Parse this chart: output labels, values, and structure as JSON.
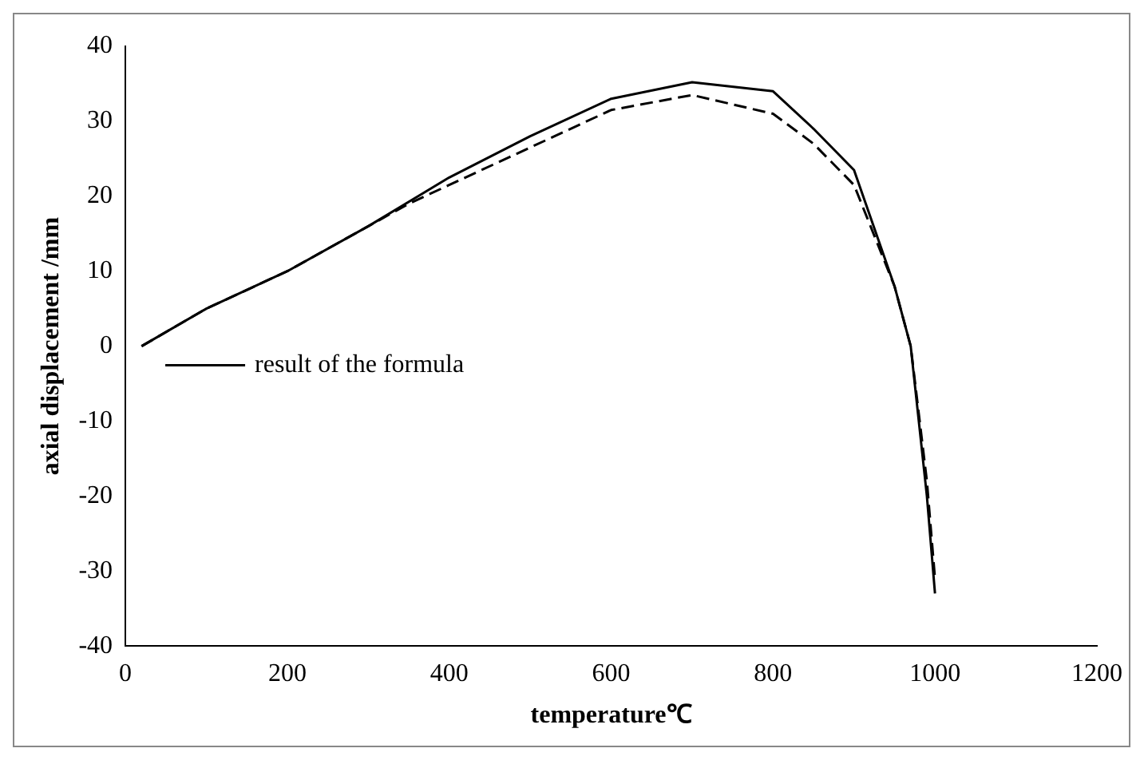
{
  "chart_data": {
    "type": "line",
    "xlabel": "temperature℃",
    "ylabel": "axial displacement /mm",
    "xlim": [
      0,
      1200
    ],
    "xticks": [
      0,
      200,
      400,
      600,
      800,
      1000,
      1200
    ],
    "ylim": [
      -40,
      40
    ],
    "yticks": [
      -40,
      -30,
      -20,
      -10,
      0,
      10,
      20,
      30,
      40
    ],
    "grid": false,
    "legend": "left",
    "marker": "none",
    "series": [
      {
        "name": "result of the formula",
        "color": "#000000",
        "line_style": "solid",
        "x": [
          20,
          100,
          200,
          300,
          400,
          500,
          600,
          700,
          800,
          850,
          900,
          950,
          970,
          990,
          1000
        ],
        "values": [
          0,
          5,
          10,
          16,
          22.5,
          28,
          33,
          35.2,
          34,
          29,
          23.5,
          8,
          0,
          -20,
          -33
        ]
      },
      {
        "color": "#000000",
        "line_style": "dashed",
        "x": [
          20,
          100,
          200,
          300,
          350,
          400,
          500,
          600,
          700,
          800,
          850,
          900,
          950,
          970,
          990,
          1000
        ],
        "values": [
          0,
          5,
          10,
          16,
          19,
          21.5,
          26.5,
          31.5,
          33.5,
          31,
          27,
          21.5,
          8,
          0,
          -18,
          -31
        ]
      }
    ]
  }
}
